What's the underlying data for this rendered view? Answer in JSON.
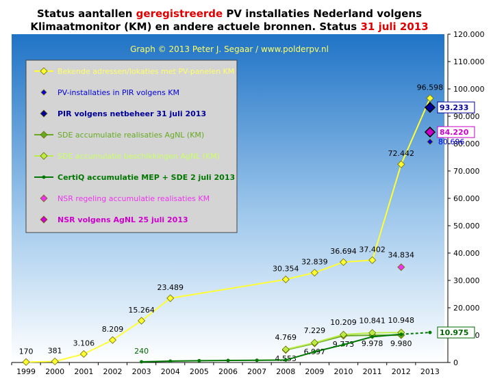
{
  "chart_data": {
    "type": "line",
    "title": {
      "line1_before": "Status aantallen ",
      "line1_red": "geregistreerde",
      "line1_after": " PV installaties  Nederland volgens",
      "line2_before": "Klimaatmonitor (KM) en andere actuele bronnen. Status ",
      "line2_red": "31 juli 2013"
    },
    "subtitle": "Graph  © 2013  Peter J. Segaar / www.polderpv.nl",
    "categories": [
      "1999",
      "2000",
      "2001",
      "2002",
      "2003",
      "2004",
      "2005",
      "2006",
      "2007",
      "2008",
      "2009",
      "2010",
      "2011",
      "2012",
      "2013"
    ],
    "y_ticks": [
      "0",
      "10.000",
      "20.000",
      "30.000",
      "40.000",
      "50.000",
      "60.000",
      "70.000",
      "80.000",
      "90.000",
      "100.000",
      "110.000",
      "120.000"
    ],
    "ylim": [
      0,
      120000
    ],
    "legend_position": "left",
    "grid": false,
    "colors": {
      "plot_bg_top": "#1f73c6",
      "plot_bg_bottom": "#ffffff",
      "legend_bg": "#d4d4d4",
      "title_red": "#e00000",
      "subtitle": "#ffff66"
    },
    "series": [
      {
        "name": "Bekende adressen/lokaties met PV-panelen KM",
        "color": "#ffff33",
        "marker": "diamond",
        "x": [
          "1999",
          "2000",
          "2001",
          "2002",
          "2003",
          "2004",
          "2008",
          "2009",
          "2010",
          "2011",
          "2012",
          "2013"
        ],
        "values": [
          170,
          381,
          3106,
          8209,
          15264,
          23489,
          30354,
          32839,
          36694,
          37402,
          72442,
          96598
        ],
        "labels": [
          "170",
          "381",
          "3.106",
          "8.209",
          "15.264",
          "23.489",
          "30.354",
          "32.839",
          "36.694",
          "37.402",
          "72.442",
          "96.598"
        ]
      },
      {
        "name": "PV-installaties in PIR volgens KM",
        "color": "#0000dd",
        "marker": "diamond-small",
        "x": [
          "2013"
        ],
        "values": [
          80696
        ],
        "labels": [
          "80.696"
        ]
      },
      {
        "name": "PIR volgens netbeheer 31 juli 2013",
        "color": "#000099",
        "marker": "diamond-big",
        "x": [
          "2013"
        ],
        "values": [
          93233
        ],
        "labels": [
          "93.233"
        ]
      },
      {
        "name": "SDE accumulatie realisaties AgNL (KM)",
        "color": "#66aa22",
        "marker": "diamond",
        "x": [
          "2008",
          "2009",
          "2010",
          "2011",
          "2012"
        ],
        "values": [
          4553,
          6997,
          9773,
          9978,
          9980
        ],
        "labels": [
          "4.553",
          "6.997",
          "9.773",
          "9.978",
          "9.980"
        ]
      },
      {
        "name": "SDE accumulatie beschikkingen AgNL (KM)",
        "color": "#bbee44",
        "marker": "diamond",
        "x": [
          "2008",
          "2009",
          "2010",
          "2011",
          "2012"
        ],
        "values": [
          4769,
          7229,
          10209,
          10841,
          10948
        ],
        "labels": [
          "4.769",
          "7.229",
          "10.209",
          "10.841",
          "10.948"
        ]
      },
      {
        "name": "CertiQ accumulatie MEP + SDE 2 juli 2013",
        "color": "#007700",
        "marker": "dot",
        "x": [
          "2003",
          "2004",
          "2005",
          "2006",
          "2007",
          "2008",
          "2009",
          "2010",
          "2011",
          "2012",
          "2013"
        ],
        "values": [
          240,
          500,
          650,
          750,
          800,
          900,
          3900,
          6500,
          9400,
          10300,
          10975
        ],
        "labels": [
          "240",
          "",
          "",
          "",
          "",
          "",
          "",
          "",
          "",
          "",
          "10.975"
        ]
      },
      {
        "name": "NSR regeling accumulatie realisaties KM",
        "color": "#ee33ee",
        "marker": "diamond",
        "x": [
          "2012"
        ],
        "values": [
          34834
        ],
        "labels": [
          "34.834"
        ]
      },
      {
        "name": "NSR volgens AgNL 25 juli 2013",
        "color": "#cc00cc",
        "marker": "diamond-big",
        "x": [
          "2013"
        ],
        "values": [
          84220
        ],
        "labels": [
          "84.220"
        ]
      }
    ]
  }
}
